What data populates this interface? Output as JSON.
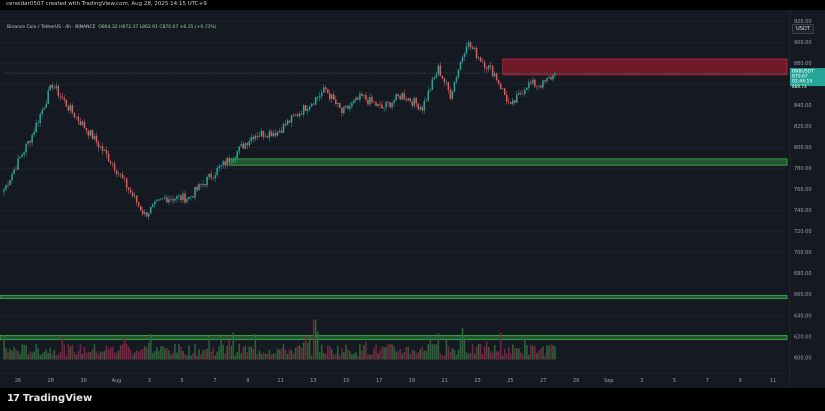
{
  "header": {
    "creator_line": "cerwidar0507 created with TradingView.com, Aug 28, 2025 14:15 UTC+9",
    "symbol_line": "Binance Coin / TetherUS · 4h · BINANCE",
    "ohlc": "O864.32 H872.37 L862.91 C870.67 +6.35 (+0.73%)",
    "quote_currency": "USDT"
  },
  "price_tag": {
    "symbol": "BNBUSDT",
    "price": "870.67",
    "countdown": "02:44:19",
    "extra": "888.73"
  },
  "footer": {
    "brand": "TradingView",
    "brand_mark": "17"
  },
  "colors": {
    "background": "#151a22",
    "up": "#26a69a",
    "down": "#ef5350",
    "resistance_zone": "#8b1a2b",
    "support_zone": "#2e8b3a",
    "price_tag": "#26a69a"
  },
  "chart_data": {
    "type": "candlestick",
    "title": "",
    "xlabel": "",
    "ylabel": "",
    "ylim": [
      590,
      925
    ],
    "y_ticks": [
      600,
      620,
      640,
      660,
      680,
      700,
      720,
      740,
      760,
      780,
      800,
      820,
      840,
      860,
      880,
      900,
      920
    ],
    "x_ticks": [
      "26",
      "28",
      "30",
      "Aug",
      "3",
      "5",
      "7",
      "9",
      "11",
      "13",
      "15",
      "17",
      "19",
      "21",
      "23",
      "25",
      "27",
      "29",
      "Sep",
      "3",
      "5",
      "7",
      "9",
      "11"
    ],
    "anchors": [
      {
        "i": 0,
        "v": 760
      },
      {
        "i": 8,
        "v": 790
      },
      {
        "i": 14,
        "v": 812
      },
      {
        "i": 24,
        "v": 860
      },
      {
        "i": 32,
        "v": 838
      },
      {
        "i": 42,
        "v": 815
      },
      {
        "i": 54,
        "v": 785
      },
      {
        "i": 62,
        "v": 760
      },
      {
        "i": 70,
        "v": 736
      },
      {
        "i": 80,
        "v": 752
      },
      {
        "i": 92,
        "v": 752
      },
      {
        "i": 104,
        "v": 775
      },
      {
        "i": 114,
        "v": 792
      },
      {
        "i": 124,
        "v": 812
      },
      {
        "i": 136,
        "v": 815
      },
      {
        "i": 148,
        "v": 835
      },
      {
        "i": 160,
        "v": 855
      },
      {
        "i": 168,
        "v": 833
      },
      {
        "i": 178,
        "v": 848
      },
      {
        "i": 188,
        "v": 837
      },
      {
        "i": 198,
        "v": 850
      },
      {
        "i": 208,
        "v": 838
      },
      {
        "i": 216,
        "v": 875
      },
      {
        "i": 222,
        "v": 850
      },
      {
        "i": 230,
        "v": 900
      },
      {
        "i": 238,
        "v": 882
      },
      {
        "i": 244,
        "v": 870
      },
      {
        "i": 252,
        "v": 838
      },
      {
        "i": 260,
        "v": 860
      },
      {
        "i": 268,
        "v": 860
      },
      {
        "i": 274,
        "v": 870
      }
    ],
    "candle_count": 275,
    "last_close": 870.67,
    "zones": [
      {
        "name": "resistance",
        "from": 869,
        "to": 884,
        "start_index": 248
      },
      {
        "name": "support",
        "from": 783,
        "to": 789,
        "start_index": 112
      },
      {
        "name": "support",
        "from": 656,
        "to": 659,
        "start_index": 0
      },
      {
        "name": "support",
        "from": 617,
        "to": 621,
        "start_index": 0
      }
    ],
    "volume_base": 598,
    "volume_max_height": 40
  }
}
